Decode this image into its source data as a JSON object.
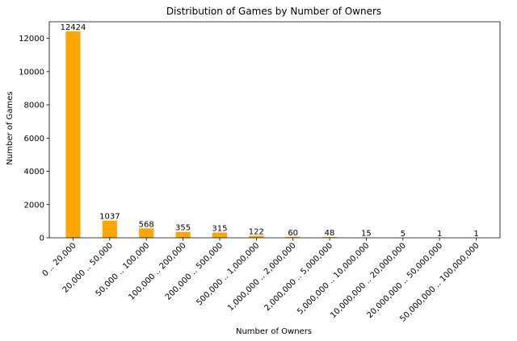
{
  "chart_data": {
    "type": "bar",
    "title": "Distribution of Games by Number of Owners",
    "xlabel": "Number of Owners",
    "ylabel": "Number of Games",
    "categories": [
      "0 .. 20,000",
      "20,000 .. 50,000",
      "50,000 .. 100,000",
      "100,000 .. 200,000",
      "200,000 .. 500,000",
      "500,000 .. 1,000,000",
      "1,000,000 .. 2,000,000",
      "2,000,000 .. 5,000,000",
      "5,000,000 .. 10,000,000",
      "10,000,000 .. 20,000,000",
      "20,000,000 .. 50,000,000",
      "50,000,000 .. 100,000,000"
    ],
    "values": [
      12424,
      1037,
      568,
      355,
      315,
      122,
      60,
      48,
      15,
      5,
      1,
      1
    ],
    "ylim": [
      0,
      13000
    ],
    "yticks": [
      0,
      2000,
      4000,
      6000,
      8000,
      10000,
      12000
    ],
    "bar_color": "#FFA500",
    "grid": false,
    "legend": "none"
  }
}
